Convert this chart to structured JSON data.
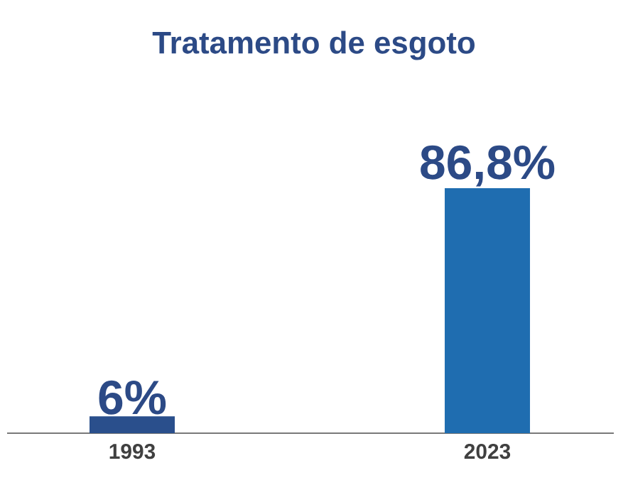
{
  "chart_data": {
    "type": "bar",
    "title": "Tratamento de esgoto",
    "categories": [
      "1993",
      "2023"
    ],
    "values": [
      6,
      86.8
    ],
    "colors": [
      "#2a4f8c",
      "#1f6db0"
    ],
    "value_labels": [
      "6%",
      "86,8%"
    ]
  }
}
